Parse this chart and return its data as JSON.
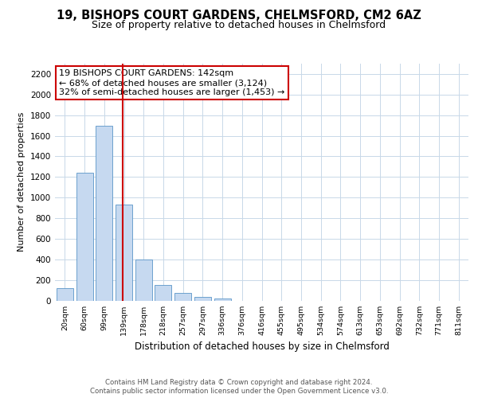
{
  "title_line1": "19, BISHOPS COURT GARDENS, CHELMSFORD, CM2 6AZ",
  "title_line2": "Size of property relative to detached houses in Chelmsford",
  "xlabel": "Distribution of detached houses by size in Chelmsford",
  "ylabel": "Number of detached properties",
  "bar_color": "#c6d9f0",
  "bar_edge_color": "#5a96c8",
  "vline_color": "#cc0000",
  "vline_x_index": 3,
  "annotation_line1": "19 BISHOPS COURT GARDENS: 142sqm",
  "annotation_line2": "← 68% of detached houses are smaller (3,124)",
  "annotation_line3": "32% of semi-detached houses are larger (1,453) →",
  "bar_values": [
    120,
    1240,
    1700,
    930,
    400,
    150,
    70,
    35,
    20,
    0,
    0,
    0,
    0,
    0,
    0,
    0,
    0,
    0,
    0,
    0,
    0
  ],
  "x_labels": [
    "20sqm",
    "60sqm",
    "99sqm",
    "139sqm",
    "178sqm",
    "218sqm",
    "257sqm",
    "297sqm",
    "336sqm",
    "376sqm",
    "416sqm",
    "455sqm",
    "495sqm",
    "534sqm",
    "574sqm",
    "613sqm",
    "653sqm",
    "692sqm",
    "732sqm",
    "771sqm",
    "811sqm"
  ],
  "ylim": [
    0,
    2300
  ],
  "yticks": [
    0,
    200,
    400,
    600,
    800,
    1000,
    1200,
    1400,
    1600,
    1800,
    2000,
    2200
  ],
  "footer_line1": "Contains HM Land Registry data © Crown copyright and database right 2024.",
  "footer_line2": "Contains public sector information licensed under the Open Government Licence v3.0.",
  "bg_color": "#ffffff",
  "grid_color": "#c8d8e8"
}
